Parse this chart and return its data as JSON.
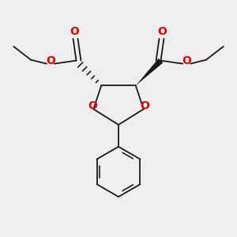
{
  "bg_color": "#eeeeee",
  "bond_color": "#1a1a1a",
  "o_color": "#ee0000",
  "lw": 1.3,
  "figsize": [
    3.0,
    3.0
  ],
  "dpi": 100,
  "xlim": [
    0,
    300
  ],
  "ylim": [
    0,
    300
  ]
}
